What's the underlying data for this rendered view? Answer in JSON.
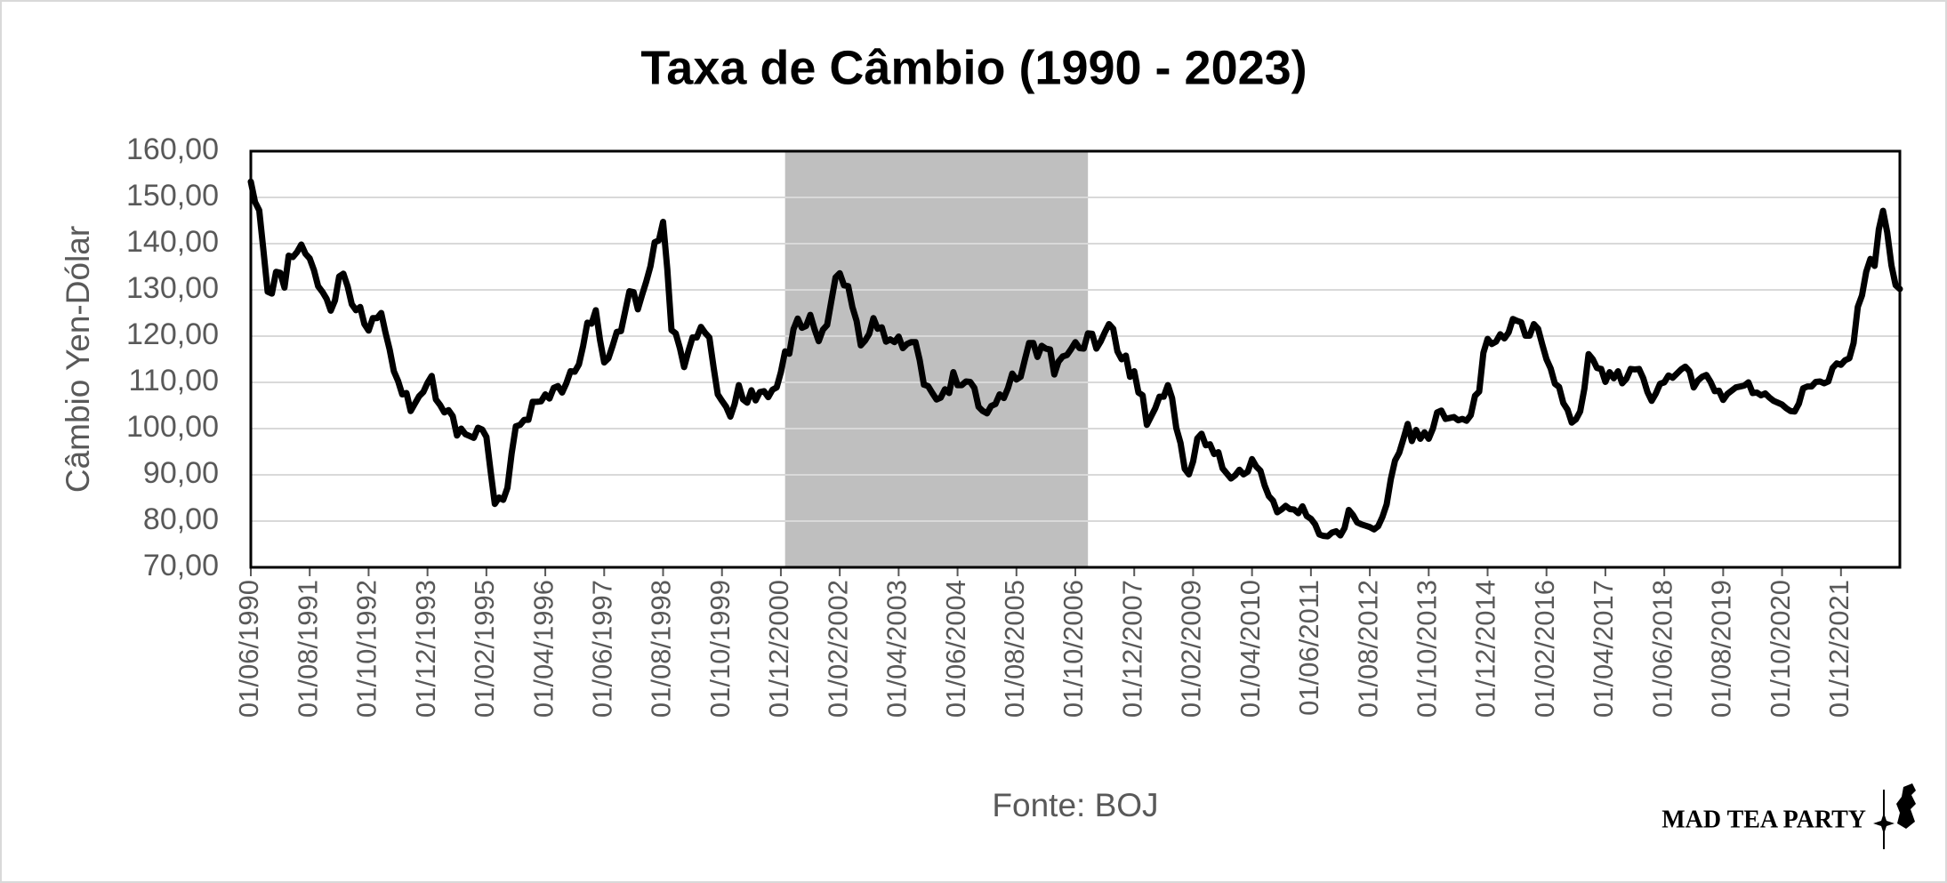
{
  "chart_data": {
    "type": "line",
    "title": "Taxa de Câmbio (1990 - 2023)",
    "y_label": "Câmbio Yen-Dólar",
    "x_label": "Fonte: BOJ",
    "watermark": "MAD TEA PARTY",
    "color": "#000000",
    "grid": true,
    "shaded_span": {
      "start": 127,
      "end": 199,
      "color": "#bfbfbf"
    },
    "ylim": [
      70,
      160
    ],
    "yticks": [
      {
        "value": 70,
        "label": "70,00"
      },
      {
        "value": 80,
        "label": "80,00"
      },
      {
        "value": 90,
        "label": "90,00"
      },
      {
        "value": 100,
        "label": "100,00"
      },
      {
        "value": 110,
        "label": "110,00"
      },
      {
        "value": 120,
        "label": "120,00"
      },
      {
        "value": 130,
        "label": "130,00"
      },
      {
        "value": 140,
        "label": "140,00"
      },
      {
        "value": 150,
        "label": "150,00"
      },
      {
        "value": 160,
        "label": "160,00"
      }
    ],
    "categories": [
      "01/06/1990",
      null,
      null,
      null,
      null,
      null,
      null,
      null,
      null,
      null,
      null,
      null,
      null,
      null,
      "01/08/1991",
      null,
      null,
      null,
      null,
      null,
      null,
      null,
      null,
      null,
      null,
      null,
      null,
      null,
      "01/10/1992",
      null,
      null,
      null,
      null,
      null,
      null,
      null,
      null,
      null,
      null,
      null,
      null,
      null,
      "01/12/1993",
      null,
      null,
      null,
      null,
      null,
      null,
      null,
      null,
      null,
      null,
      null,
      null,
      null,
      "01/02/1995",
      null,
      null,
      null,
      null,
      null,
      null,
      null,
      null,
      null,
      null,
      null,
      null,
      null,
      "01/04/1996",
      null,
      null,
      null,
      null,
      null,
      null,
      null,
      null,
      null,
      null,
      null,
      null,
      null,
      "01/06/1997",
      null,
      null,
      null,
      null,
      null,
      null,
      null,
      null,
      null,
      null,
      null,
      null,
      null,
      "01/08/1998",
      null,
      null,
      null,
      null,
      null,
      null,
      null,
      null,
      null,
      null,
      null,
      null,
      null,
      "01/10/1999",
      null,
      null,
      null,
      null,
      null,
      null,
      null,
      null,
      null,
      null,
      null,
      null,
      null,
      "01/12/2000",
      null,
      null,
      null,
      null,
      null,
      null,
      null,
      null,
      null,
      null,
      null,
      null,
      null,
      "01/02/2002",
      null,
      null,
      null,
      null,
      null,
      null,
      null,
      null,
      null,
      null,
      null,
      null,
      null,
      "01/04/2003",
      null,
      null,
      null,
      null,
      null,
      null,
      null,
      null,
      null,
      null,
      null,
      null,
      null,
      "01/06/2004",
      null,
      null,
      null,
      null,
      null,
      null,
      null,
      null,
      null,
      null,
      null,
      null,
      null,
      "01/08/2005",
      null,
      null,
      null,
      null,
      null,
      null,
      null,
      null,
      null,
      null,
      null,
      null,
      null,
      "01/10/2006",
      null,
      null,
      null,
      null,
      null,
      null,
      null,
      null,
      null,
      null,
      null,
      null,
      null,
      "01/12/2007",
      null,
      null,
      null,
      null,
      null,
      null,
      null,
      null,
      null,
      null,
      null,
      null,
      null,
      "01/02/2009",
      null,
      null,
      null,
      null,
      null,
      null,
      null,
      null,
      null,
      null,
      null,
      null,
      null,
      "01/04/2010",
      null,
      null,
      null,
      null,
      null,
      null,
      null,
      null,
      null,
      null,
      null,
      null,
      null,
      "01/06/2011",
      null,
      null,
      null,
      null,
      null,
      null,
      null,
      null,
      null,
      null,
      null,
      null,
      null,
      "01/08/2012",
      null,
      null,
      null,
      null,
      null,
      null,
      null,
      null,
      null,
      null,
      null,
      null,
      null,
      "01/10/2013",
      null,
      null,
      null,
      null,
      null,
      null,
      null,
      null,
      null,
      null,
      null,
      null,
      null,
      "01/12/2014",
      null,
      null,
      null,
      null,
      null,
      null,
      null,
      null,
      null,
      null,
      null,
      null,
      null,
      "01/02/2016",
      null,
      null,
      null,
      null,
      null,
      null,
      null,
      null,
      null,
      null,
      null,
      null,
      null,
      "01/04/2017",
      null,
      null,
      null,
      null,
      null,
      null,
      null,
      null,
      null,
      null,
      null,
      null,
      null,
      "01/06/2018",
      null,
      null,
      null,
      null,
      null,
      null,
      null,
      null,
      null,
      null,
      null,
      null,
      null,
      "01/08/2019",
      null,
      null,
      null,
      null,
      null,
      null,
      null,
      null,
      null,
      null,
      null,
      null,
      null,
      "01/10/2020",
      null,
      null,
      null,
      null,
      null,
      null,
      null,
      null,
      null,
      null,
      null,
      null,
      null,
      "01/12/2021",
      null,
      null,
      null,
      null,
      null,
      null,
      null,
      null,
      null,
      null,
      null,
      null,
      null,
      null
    ],
    "values": [
      153.4,
      149.0,
      147.2,
      138.5,
      129.6,
      129.2,
      133.9,
      133.7,
      130.5,
      137.4,
      137.1,
      138.2,
      139.8,
      137.8,
      136.8,
      134.3,
      130.8,
      129.6,
      128.1,
      125.5,
      127.7,
      132.9,
      133.5,
      130.8,
      126.9,
      125.6,
      126.3,
      122.6,
      121.2,
      123.9,
      123.9,
      125.0,
      120.8,
      117.1,
      112.4,
      110.3,
      107.4,
      107.7,
      103.8,
      105.4,
      107.0,
      107.9,
      109.9,
      111.4,
      106.3,
      105.1,
      103.5,
      104.0,
      102.7,
      98.5,
      100.0,
      98.8,
      98.4,
      98.0,
      100.2,
      99.8,
      98.2,
      90.8,
      83.7,
      85.1,
      84.6,
      87.2,
      94.6,
      100.5,
      100.8,
      101.9,
      101.9,
      105.8,
      105.8,
      105.9,
      107.4,
      106.5,
      108.8,
      109.2,
      107.8,
      109.8,
      112.4,
      112.3,
      113.9,
      117.9,
      122.9,
      122.7,
      125.6,
      119.2,
      114.3,
      115.2,
      117.9,
      120.9,
      121.1,
      125.4,
      129.7,
      129.5,
      125.8,
      128.9,
      131.8,
      135.1,
      140.3,
      140.7,
      144.7,
      134.5,
      121.3,
      120.6,
      117.4,
      113.3,
      116.7,
      119.7,
      119.7,
      122.0,
      120.7,
      119.7,
      113.3,
      107.4,
      106.0,
      104.7,
      102.6,
      105.3,
      109.4,
      106.3,
      105.6,
      108.3,
      106.1,
      107.9,
      108.1,
      106.8,
      108.4,
      108.9,
      112.2,
      116.7,
      116.2,
      121.5,
      123.8,
      121.8,
      122.2,
      124.6,
      121.5,
      118.9,
      121.4,
      122.4,
      127.6,
      132.7,
      133.6,
      131.0,
      130.8,
      126.3,
      123.3,
      118.0,
      119.0,
      120.5,
      123.9,
      121.6,
      121.9,
      118.8,
      119.3,
      118.7,
      119.9,
      117.4,
      118.3,
      118.7,
      118.7,
      114.8,
      109.5,
      109.2,
      107.7,
      106.3,
      106.7,
      108.5,
      107.7,
      112.2,
      109.4,
      109.4,
      110.2,
      110.1,
      108.8,
      104.7,
      103.8,
      103.3,
      104.9,
      105.3,
      107.4,
      106.6,
      108.8,
      111.9,
      110.6,
      111.2,
      114.9,
      118.5,
      118.5,
      115.5,
      117.9,
      117.3,
      117.1,
      111.7,
      114.5,
      115.6,
      115.9,
      117.2,
      118.7,
      117.4,
      117.3,
      120.6,
      120.5,
      117.3,
      118.8,
      120.8,
      122.6,
      121.6,
      116.7,
      115.0,
      115.8,
      111.2,
      112.4,
      107.8,
      107.2,
      100.8,
      102.6,
      104.4,
      106.9,
      106.9,
      109.4,
      106.6,
      100.1,
      96.9,
      91.3,
      90.1,
      92.9,
      97.9,
      98.9,
      96.4,
      96.6,
      94.5,
      94.9,
      91.4,
      90.3,
      89.2,
      89.9,
      91.1,
      90.1,
      90.7,
      93.4,
      91.8,
      90.9,
      87.7,
      85.4,
      84.4,
      81.9,
      82.5,
      83.3,
      82.6,
      82.5,
      81.7,
      83.2,
      81.1,
      80.5,
      79.3,
      77.1,
      76.8,
      76.7,
      77.5,
      77.8,
      76.9,
      78.5,
      82.4,
      81.3,
      79.7,
      79.3,
      79.0,
      78.7,
      78.2,
      78.9,
      80.9,
      83.6,
      89.1,
      93.1,
      94.8,
      97.8,
      101.0,
      97.3,
      99.7,
      97.8,
      99.2,
      97.8,
      100.0,
      103.5,
      103.9,
      102.1,
      102.3,
      102.5,
      101.8,
      102.1,
      101.7,
      102.9,
      107.1,
      108.0,
      116.4,
      119.4,
      118.3,
      118.8,
      120.4,
      119.5,
      120.8,
      123.7,
      123.3,
      123.0,
      120.1,
      120.1,
      122.6,
      121.6,
      118.2,
      115.0,
      113.0,
      109.7,
      109.0,
      105.5,
      104.1,
      101.3,
      102.0,
      103.7,
      108.6,
      116.1,
      115.0,
      113.1,
      112.9,
      110.1,
      112.2,
      110.9,
      112.4,
      109.8,
      110.8,
      112.9,
      112.8,
      112.9,
      110.9,
      107.9,
      106.0,
      107.6,
      109.7,
      110.0,
      111.5,
      111.0,
      111.9,
      112.8,
      113.4,
      112.4,
      108.9,
      110.4,
      111.2,
      111.6,
      110.1,
      108.1,
      108.2,
      106.2,
      107.5,
      108.2,
      108.9,
      109.1,
      109.3,
      110.0,
      107.7,
      107.8,
      107.2,
      107.6,
      106.7,
      106.0,
      105.6,
      105.2,
      104.4,
      103.8,
      103.7,
      105.4,
      108.7,
      109.1,
      109.1,
      110.1,
      110.2,
      109.8,
      110.2,
      113.1,
      114.1,
      113.8,
      114.8,
      115.2,
      118.5,
      126.3,
      128.8,
      133.9,
      136.7,
      135.2,
      143.1,
      147.1,
      142.4,
      135.3,
      131.0,
      130.2
    ]
  }
}
